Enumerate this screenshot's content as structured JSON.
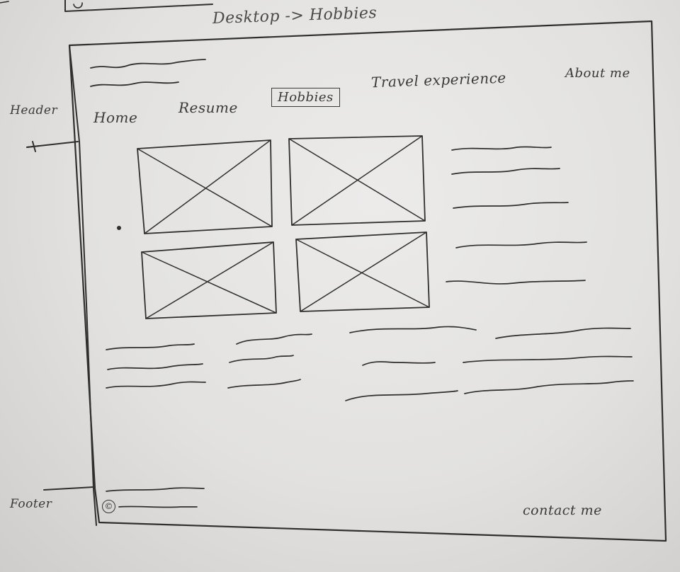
{
  "title": "Desktop -> Hobbies",
  "annotations": {
    "header_label": "Header",
    "footer_label": "Footer"
  },
  "nav": {
    "items": [
      {
        "label": "Home",
        "active": false
      },
      {
        "label": "Resume",
        "active": false
      },
      {
        "label": "Hobbies",
        "active": true
      },
      {
        "label": "Travel experience",
        "active": false
      },
      {
        "label": "About me",
        "active": false
      }
    ]
  },
  "footer": {
    "copyright_icon": "©",
    "contact_label": "contact me"
  },
  "placeholders": {
    "image_icon": "image-placeholder-icon",
    "image_count": 4
  },
  "colors": {
    "paper": "#e6e5e3",
    "ink": "#2f2f2f"
  }
}
